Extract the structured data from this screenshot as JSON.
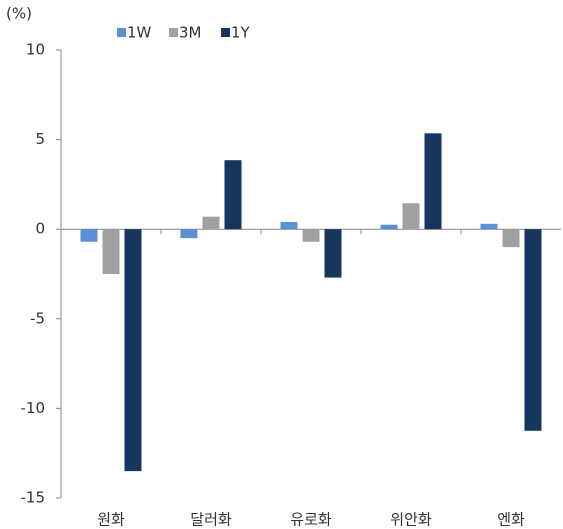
{
  "chart_data": {
    "type": "bar",
    "y_label": "(%)",
    "categories": [
      "원화",
      "달러화",
      "유로화",
      "위안화",
      "엔화"
    ],
    "series": [
      {
        "name": "1W",
        "color": "#5b8fd6",
        "values": [
          -0.7,
          -0.5,
          0.4,
          0.25,
          0.3
        ]
      },
      {
        "name": "3M",
        "color": "#a0a0a0",
        "values": [
          -2.5,
          0.7,
          -0.7,
          1.45,
          -1.0
        ]
      },
      {
        "name": "1Y",
        "color": "#17365d",
        "values": [
          -13.5,
          3.85,
          -2.7,
          5.35,
          -11.25
        ]
      }
    ],
    "ylim": [
      -15,
      10
    ],
    "yticks": [
      -15,
      -10,
      -5,
      0,
      5,
      10
    ],
    "legend": "top"
  }
}
